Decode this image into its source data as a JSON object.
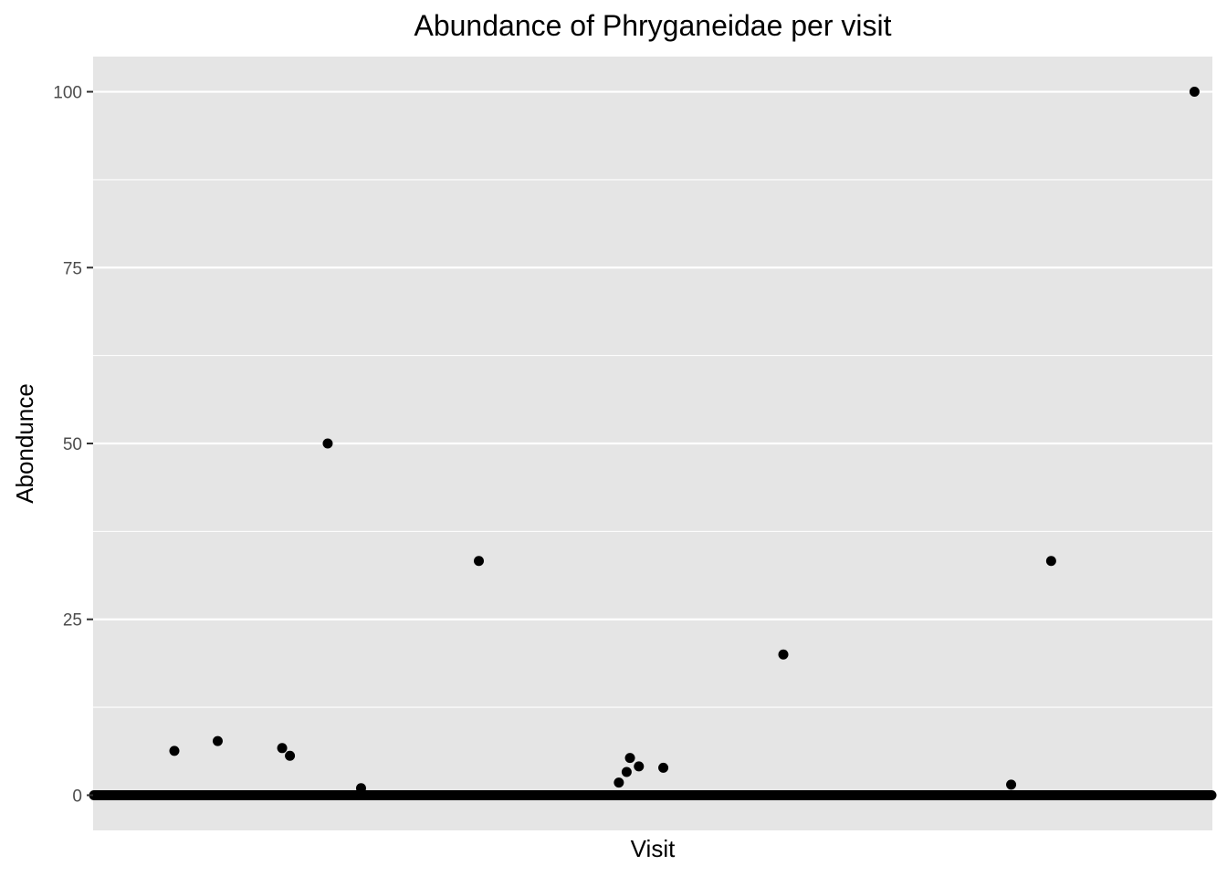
{
  "chart_data": {
    "type": "scatter",
    "title": "Abundance of Phryganeidae per visit",
    "xlabel": "Visit",
    "ylabel": "Abondunce",
    "ylim": [
      -5,
      105
    ],
    "yticks": [
      0,
      25,
      50,
      75,
      100
    ],
    "ytick_labels": [
      "0",
      "25",
      "50",
      "75",
      "100"
    ],
    "x_tick_labels": "none shown",
    "grid": true,
    "n_visits": 1000,
    "zero_line_description": "all remaining visits have abundance 0",
    "points": [
      {
        "x": 70,
        "y": 6.3
      },
      {
        "x": 109,
        "y": 7.7
      },
      {
        "x": 167,
        "y": 6.7
      },
      {
        "x": 174,
        "y": 5.6
      },
      {
        "x": 208,
        "y": 50
      },
      {
        "x": 238,
        "y": 1.0
      },
      {
        "x": 344,
        "y": 33.3
      },
      {
        "x": 470,
        "y": 1.8
      },
      {
        "x": 477,
        "y": 3.3
      },
      {
        "x": 480,
        "y": 5.3
      },
      {
        "x": 488,
        "y": 4.1
      },
      {
        "x": 510,
        "y": 3.9
      },
      {
        "x": 618,
        "y": 20
      },
      {
        "x": 823,
        "y": 1.5
      },
      {
        "x": 859,
        "y": 33.3
      },
      {
        "x": 988,
        "y": 100
      }
    ],
    "colors": {
      "panel": "#e5e5e5",
      "grid": "#ffffff",
      "point": "#000000",
      "tick_text": "#4d4d4d"
    }
  }
}
